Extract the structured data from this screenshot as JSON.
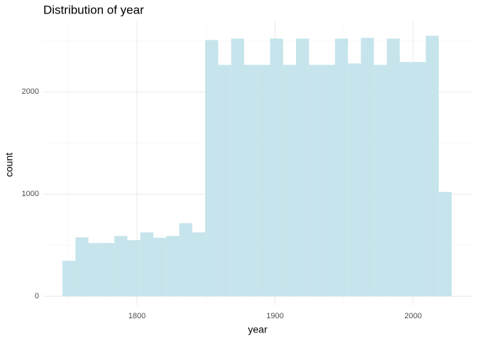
{
  "chart_data": {
    "type": "histogram",
    "title": "Distribution of year",
    "x_label": "year",
    "y_label": "count",
    "bins": [
      1746,
      1755.4,
      1764.8,
      1774.2,
      1783.6,
      1793,
      1802.4,
      1811.8,
      1821.2,
      1830.6,
      1840,
      1849.4,
      1858.8,
      1868.2,
      1877.6,
      1887,
      1896.4,
      1905.8,
      1915.2,
      1924.6,
      1934,
      1943.4,
      1952.8,
      1962.2,
      1971.6,
      1981,
      1990.4,
      1999.8,
      2009.2,
      2018.6,
      2028
    ],
    "counts": [
      347,
      576,
      521,
      521,
      590,
      549,
      625,
      572,
      590,
      715,
      625,
      2507,
      2264,
      2521,
      2264,
      2264,
      2521,
      2264,
      2521,
      2264,
      2264,
      2521,
      2278,
      2528,
      2264,
      2521,
      2292,
      2292,
      2549,
      1021
    ],
    "color": "#c6e4ec",
    "xlim": [
      1732.1,
      2042.7
    ],
    "xticks": [
      1800,
      1900,
      2000
    ],
    "xminor_ticks": [
      1750,
      1850,
      1950
    ],
    "ylim": [
      -90,
      2690
    ],
    "yticks": [
      0,
      1000,
      2000
    ],
    "yminor_ticks": [
      500,
      1500,
      2500
    ],
    "grid": true
  }
}
